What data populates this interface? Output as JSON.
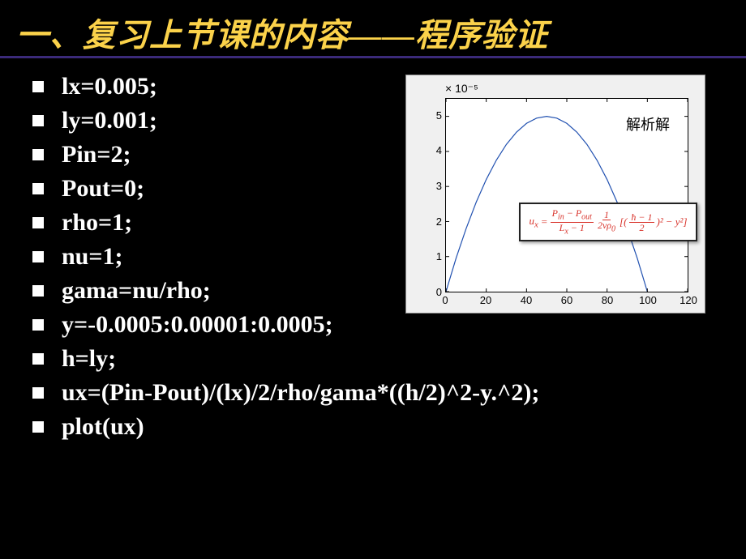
{
  "title": "一、复习上节课的内容——程序验证",
  "code_lines": [
    "lx=0.005;",
    "ly=0.001;",
    "Pin=2;",
    "Pout=0;",
    "rho=1;",
    "nu=1;",
    "gama=nu/rho;",
    "y=-0.0005:0.00001:0.0005;",
    "h=ly;",
    "ux=(Pin-Pout)/(lx)/2/rho/gama*((h/2)^2-y.^2);",
    "plot(ux)"
  ],
  "chart": {
    "exponent_label": "× 10⁻⁵",
    "legend": "解析解",
    "yticks": [
      "0",
      "1",
      "2",
      "3",
      "4",
      "5"
    ],
    "xticks": [
      "0",
      "20",
      "40",
      "60",
      "80",
      "100",
      "120"
    ],
    "xlim": [
      0,
      120
    ],
    "ylim": [
      0,
      5.5
    ],
    "curve_color": "#2050b0",
    "grid_color": "#000000",
    "background": "#ffffff",
    "formula_parts": {
      "lhs": "u",
      "lhs_sub": "x",
      "eq": "=",
      "f1_num": "P_in − P_out",
      "f1_den": "L_x − 1",
      "f2_num": "1",
      "f2_den": "2νρ₀",
      "bracket_open": "[(",
      "f3_num": "ħ − 1",
      "f3_den": "2",
      "sq": ")²",
      "minus": "− y²]"
    },
    "curve_points": [
      [
        0,
        0
      ],
      [
        5,
        0.95
      ],
      [
        10,
        1.8
      ],
      [
        15,
        2.55
      ],
      [
        20,
        3.2
      ],
      [
        25,
        3.75
      ],
      [
        30,
        4.2
      ],
      [
        35,
        4.55
      ],
      [
        40,
        4.8
      ],
      [
        45,
        4.95
      ],
      [
        50,
        5.0
      ],
      [
        55,
        4.95
      ],
      [
        60,
        4.8
      ],
      [
        65,
        4.55
      ],
      [
        70,
        4.2
      ],
      [
        75,
        3.75
      ],
      [
        80,
        3.2
      ],
      [
        85,
        2.55
      ],
      [
        90,
        1.8
      ],
      [
        95,
        0.95
      ],
      [
        100,
        0
      ]
    ]
  },
  "colors": {
    "title_color": "#fbd24a",
    "title_underline": "#3b2a7a",
    "bullet_color": "#ffffff",
    "code_color": "#ffffff",
    "formula_color": "#d8322a",
    "page_bg": "#000000"
  },
  "typography": {
    "title_fontsize": 40,
    "code_fontsize": 30,
    "tick_fontsize": 13,
    "legend_fontsize": 18
  }
}
